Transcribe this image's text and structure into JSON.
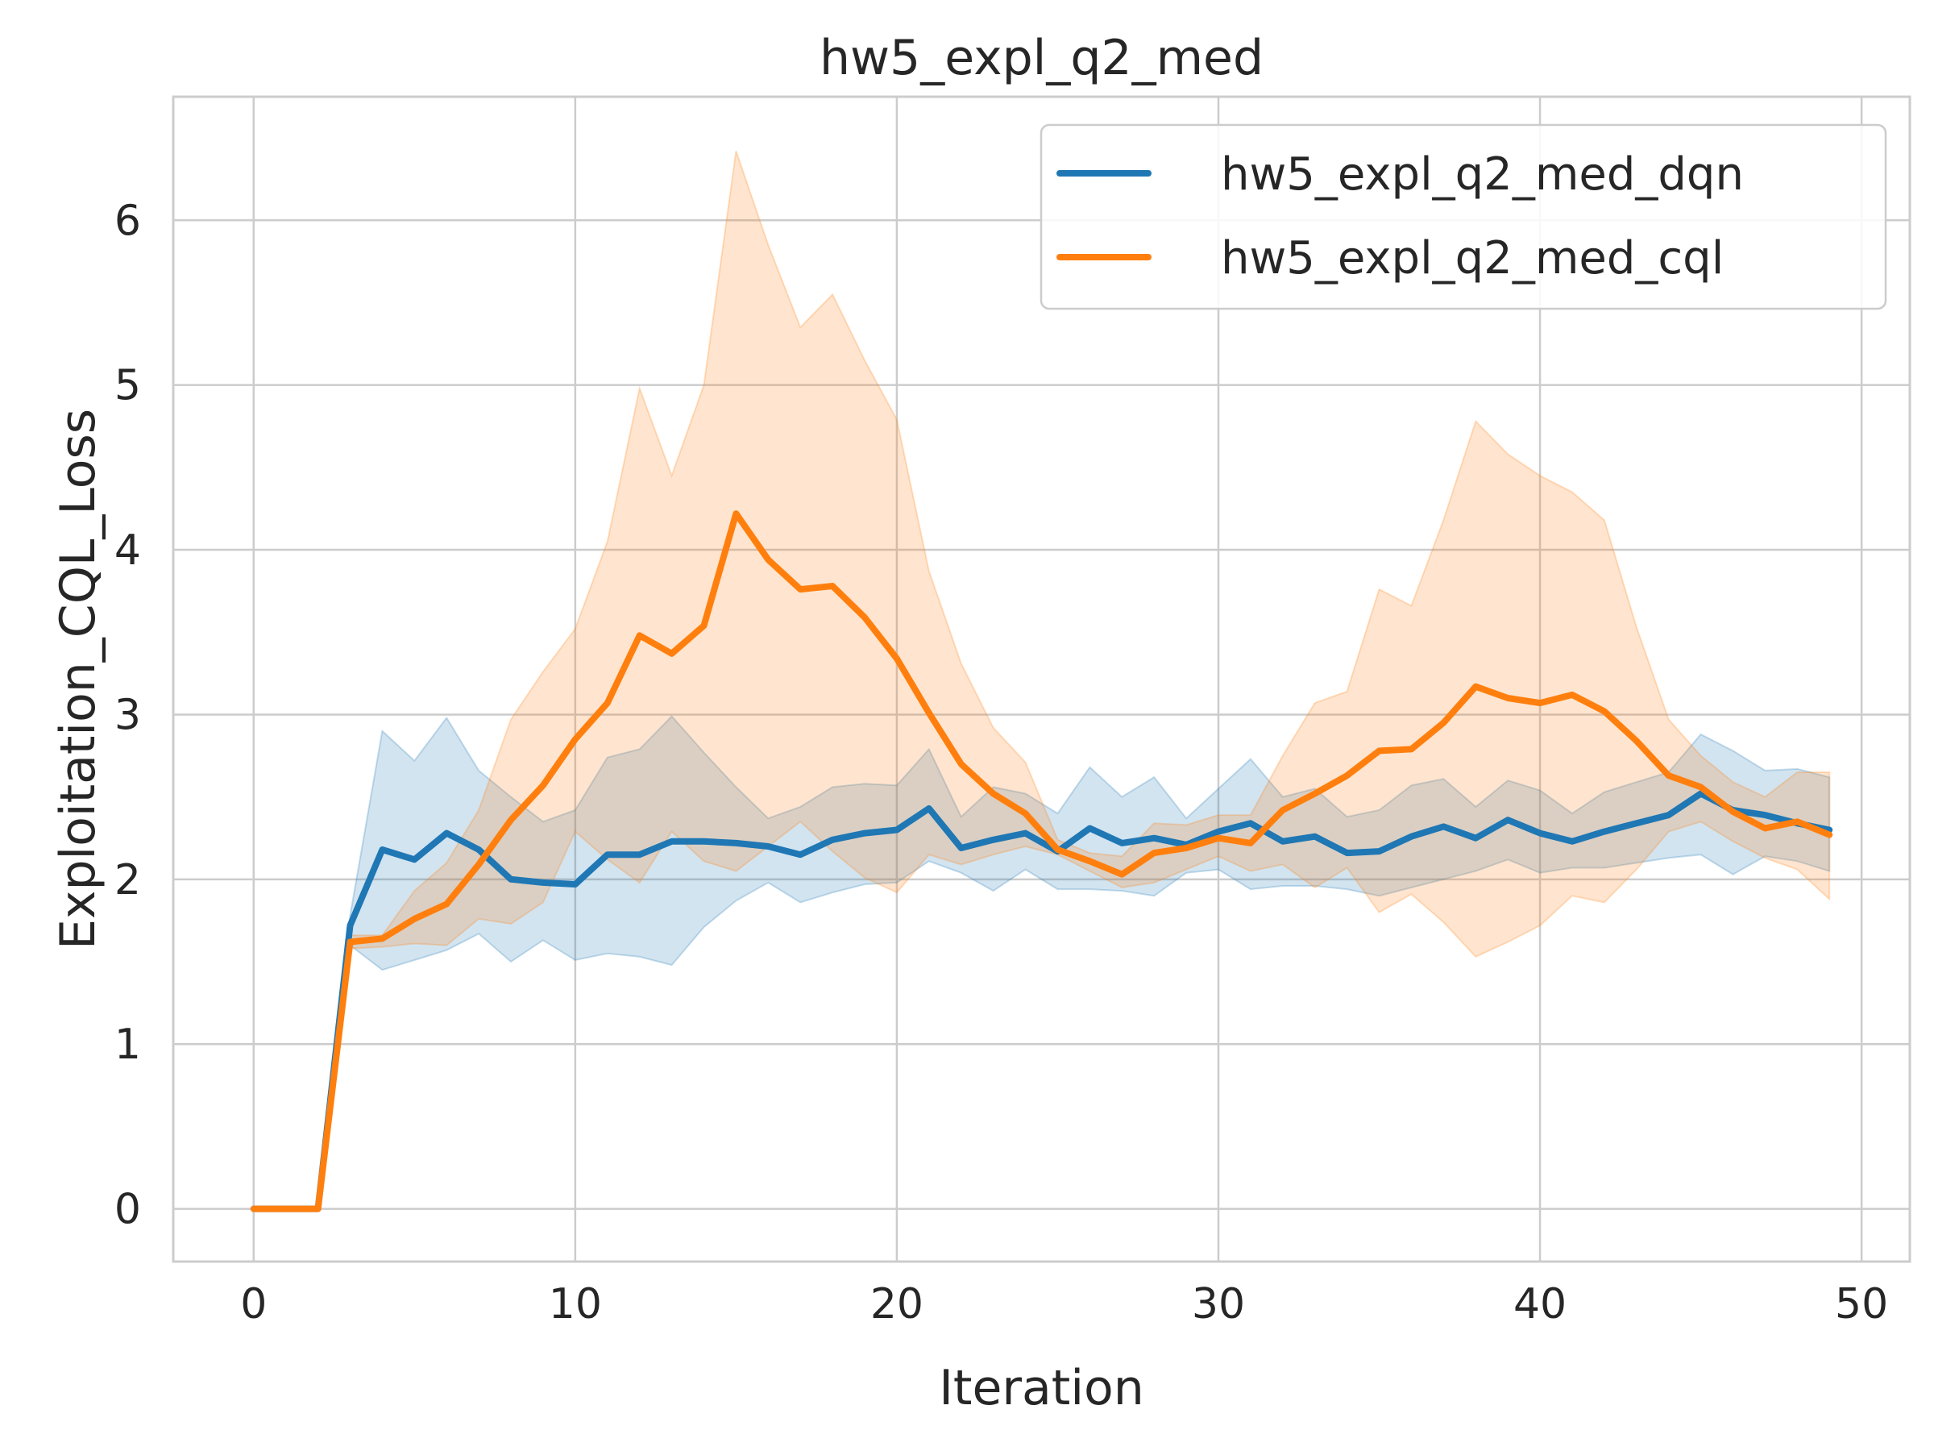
{
  "chart_data": {
    "type": "line",
    "title": "hw5_expl_q2_med",
    "xlabel": "Iteration",
    "ylabel": "Exploitation_CQL_Loss",
    "xlim": [
      -2.5,
      51.5
    ],
    "ylim": [
      -0.32,
      6.75
    ],
    "xticks": [
      0,
      10,
      20,
      30,
      40,
      50
    ],
    "yticks": [
      0,
      1,
      2,
      3,
      4,
      5,
      6
    ],
    "grid": true,
    "legend_position": "top-right",
    "x": [
      0,
      1,
      2,
      3,
      4,
      5,
      6,
      7,
      8,
      9,
      10,
      11,
      12,
      13,
      14,
      15,
      16,
      17,
      18,
      19,
      20,
      21,
      22,
      23,
      24,
      25,
      26,
      27,
      28,
      29,
      30,
      31,
      32,
      33,
      34,
      35,
      36,
      37,
      38,
      39,
      40,
      41,
      42,
      43,
      44,
      45,
      46,
      47,
      48,
      49
    ],
    "series": [
      {
        "name": "hw5_expl_q2_med_dqn",
        "color": "#1f77b4",
        "values": [
          0,
          0,
          0,
          1.72,
          2.18,
          2.12,
          2.28,
          2.18,
          2.0,
          1.98,
          1.97,
          2.15,
          2.15,
          2.23,
          2.23,
          2.22,
          2.2,
          2.15,
          2.24,
          2.28,
          2.3,
          2.43,
          2.19,
          2.24,
          2.28,
          2.17,
          2.31,
          2.22,
          2.25,
          2.21,
          2.29,
          2.34,
          2.23,
          2.26,
          2.16,
          2.17,
          2.26,
          2.32,
          2.25,
          2.36,
          2.28,
          2.23,
          2.29,
          2.34,
          2.39,
          2.52,
          2.42,
          2.39,
          2.34,
          2.3
        ],
        "lower": [
          0,
          0,
          0,
          1.6,
          1.45,
          1.51,
          1.57,
          1.67,
          1.5,
          1.63,
          1.51,
          1.55,
          1.53,
          1.48,
          1.71,
          1.87,
          1.98,
          1.86,
          1.92,
          1.97,
          1.98,
          2.11,
          2.04,
          1.93,
          2.06,
          1.94,
          1.94,
          1.93,
          1.9,
          2.04,
          2.06,
          1.94,
          1.96,
          1.96,
          1.94,
          1.9,
          1.95,
          2.0,
          2.05,
          2.12,
          2.04,
          2.07,
          2.07,
          2.1,
          2.13,
          2.15,
          2.03,
          2.14,
          2.11,
          2.05
        ],
        "upper": [
          0,
          0,
          0,
          1.78,
          2.9,
          2.72,
          2.98,
          2.66,
          2.5,
          2.35,
          2.42,
          2.74,
          2.79,
          2.99,
          2.77,
          2.56,
          2.37,
          2.44,
          2.56,
          2.58,
          2.57,
          2.79,
          2.38,
          2.56,
          2.52,
          2.4,
          2.68,
          2.5,
          2.62,
          2.37,
          2.55,
          2.73,
          2.5,
          2.55,
          2.38,
          2.42,
          2.57,
          2.61,
          2.44,
          2.6,
          2.54,
          2.4,
          2.53,
          2.59,
          2.65,
          2.88,
          2.78,
          2.66,
          2.67,
          2.62
        ]
      },
      {
        "name": "hw5_expl_q2_med_cql",
        "color": "#ff7f0e",
        "values": [
          0,
          0,
          0,
          1.62,
          1.64,
          1.76,
          1.85,
          2.09,
          2.36,
          2.57,
          2.85,
          3.07,
          3.48,
          3.37,
          3.54,
          4.22,
          3.94,
          3.76,
          3.78,
          3.59,
          3.34,
          3.01,
          2.7,
          2.52,
          2.4,
          2.18,
          2.11,
          2.03,
          2.16,
          2.19,
          2.25,
          2.22,
          2.42,
          2.52,
          2.63,
          2.78,
          2.79,
          2.95,
          3.17,
          3.1,
          3.07,
          3.12,
          3.02,
          2.84,
          2.63,
          2.56,
          2.41,
          2.31,
          2.35,
          2.27
        ],
        "lower": [
          0,
          0,
          0,
          1.58,
          1.59,
          1.61,
          1.6,
          1.76,
          1.73,
          1.86,
          2.29,
          2.12,
          1.98,
          2.29,
          2.11,
          2.05,
          2.2,
          2.35,
          2.17,
          2.01,
          1.92,
          2.15,
          2.09,
          2.15,
          2.2,
          2.15,
          2.05,
          1.95,
          1.98,
          2.06,
          2.14,
          2.05,
          2.09,
          1.95,
          2.07,
          1.8,
          1.91,
          1.74,
          1.53,
          1.62,
          1.72,
          1.9,
          1.86,
          2.06,
          2.29,
          2.35,
          2.23,
          2.13,
          2.06,
          1.88
        ],
        "upper": [
          0,
          0,
          0,
          1.66,
          1.66,
          1.93,
          2.1,
          2.42,
          2.97,
          3.26,
          3.52,
          4.05,
          4.98,
          4.45,
          5.0,
          6.42,
          5.85,
          5.35,
          5.55,
          5.15,
          4.79,
          3.87,
          3.31,
          2.92,
          2.71,
          2.24,
          2.16,
          2.14,
          2.34,
          2.33,
          2.39,
          2.39,
          2.75,
          3.07,
          3.14,
          3.76,
          3.66,
          4.18,
          4.78,
          4.58,
          4.45,
          4.35,
          4.18,
          3.53,
          2.97,
          2.75,
          2.59,
          2.5,
          2.65,
          2.65
        ]
      }
    ]
  }
}
